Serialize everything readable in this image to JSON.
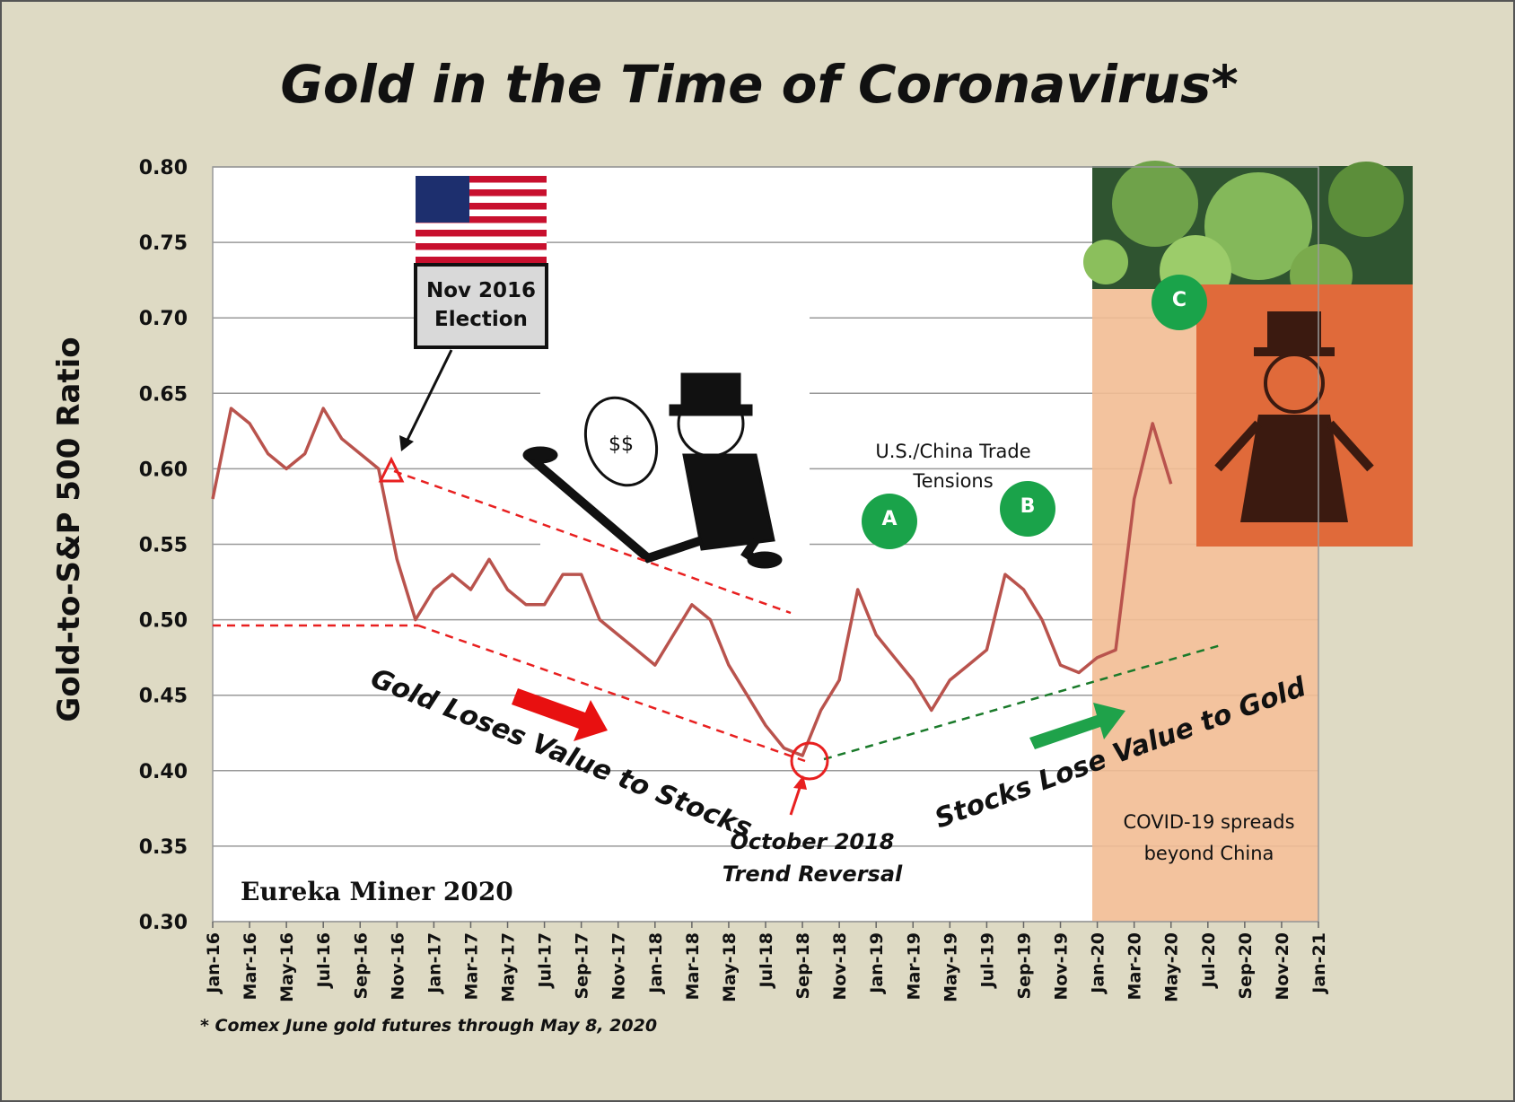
{
  "chart_data": {
    "type": "line",
    "title": "Gold in the Time of Coronavirus*",
    "y_label": "Gold-to-S&P 500 Ratio",
    "footnote": "* Comex June gold futures through May 8, 2020",
    "credit": "Eureka Miner 2020",
    "annotations": [
      "Nov 2016\nElection",
      "U.S./China Trade\nTensions",
      "A",
      "B",
      "C",
      "Gold Loses Value to Stocks",
      "Stocks Lose Value to Gold",
      "October 2018\nTrend Reversal",
      "COVID-19 spreads\nbeyond China"
    ],
    "categories": [
      "Jan-16",
      null,
      "Mar-16",
      null,
      "May-16",
      null,
      "Jul-16",
      null,
      "Sep-16",
      null,
      "Nov-16",
      null,
      "Jan-17",
      null,
      "Mar-17",
      null,
      "May-17",
      null,
      "Jul-17",
      null,
      "Sep-17",
      null,
      "Nov-17",
      null,
      "Jan-18",
      null,
      "Mar-18",
      null,
      "May-18",
      null,
      "Jul-18",
      null,
      "Sep-18",
      null,
      "Nov-18",
      null,
      "Jan-19",
      null,
      "Mar-19",
      null,
      "May-19",
      null,
      "Jul-19",
      null,
      "Sep-19",
      null,
      "Nov-19",
      null,
      "Jan-20",
      null,
      "Mar-20",
      null,
      "May-20",
      null,
      "Jul-20",
      null,
      "Sep-20",
      null,
      "Nov-20",
      null,
      "Jan-21"
    ],
    "values": [
      0.58,
      0.64,
      0.63,
      0.61,
      0.6,
      0.61,
      0.64,
      0.62,
      0.61,
      0.6,
      0.54,
      0.5,
      0.52,
      0.53,
      0.52,
      0.54,
      0.52,
      0.51,
      0.51,
      0.53,
      0.53,
      0.5,
      0.49,
      0.48,
      0.47,
      0.49,
      0.51,
      0.5,
      0.47,
      0.45,
      0.43,
      0.415,
      0.41,
      0.44,
      0.46,
      0.52,
      0.49,
      0.475,
      0.46,
      0.44,
      0.46,
      0.47,
      0.48,
      0.53,
      0.52,
      0.5,
      0.47,
      0.465,
      0.475,
      0.48,
      0.58,
      0.63,
      0.59,
      null,
      null,
      null,
      null,
      null,
      null,
      null,
      null
    ],
    "color": "#b9534d",
    "ylim": [
      0.3,
      0.8
    ],
    "yticks": [
      {
        "value": 0.3,
        "label": "0.30"
      },
      {
        "value": 0.35,
        "label": "0.35"
      },
      {
        "value": 0.4,
        "label": "0.40"
      },
      {
        "value": 0.45,
        "label": "0.45"
      },
      {
        "value": 0.5,
        "label": "0.50"
      },
      {
        "value": 0.55,
        "label": "0.55"
      },
      {
        "value": 0.6,
        "label": "0.60"
      },
      {
        "value": 0.65,
        "label": "0.65"
      },
      {
        "value": 0.7,
        "label": "0.70"
      },
      {
        "value": 0.75,
        "label": "0.75"
      },
      {
        "value": 0.8,
        "label": "0.80"
      }
    ],
    "grid": true
  }
}
